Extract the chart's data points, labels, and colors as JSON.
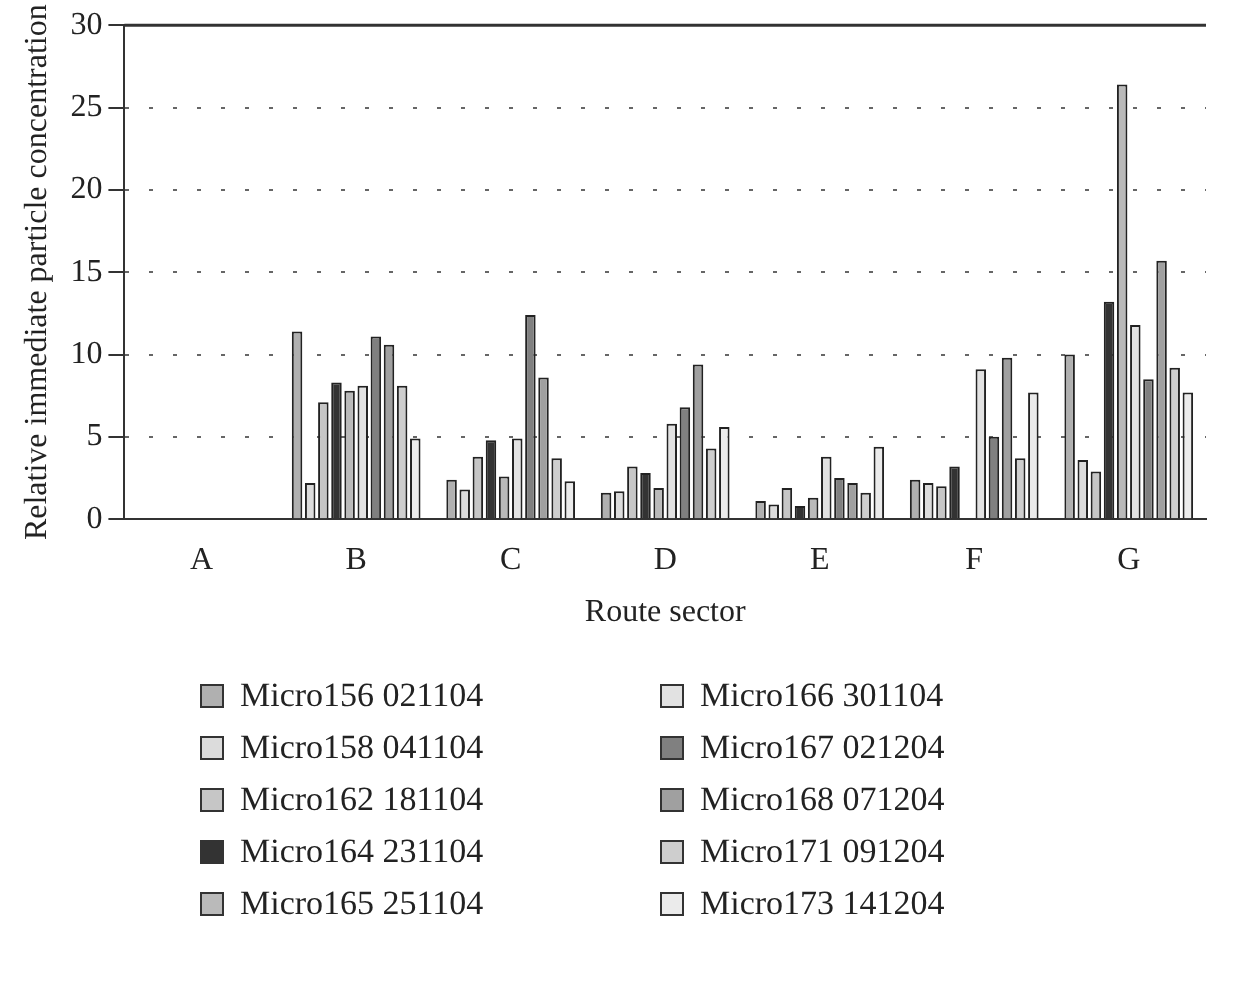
{
  "chart_data": {
    "type": "bar",
    "xlabel": "Route sector",
    "ylabel": "Relative immediate particle concentration",
    "categories": [
      "A",
      "B",
      "C",
      "D",
      "E",
      "F",
      "G"
    ],
    "series": [
      {
        "name": "Micro156 021104",
        "color": "#b0b0b0",
        "values": [
          0,
          11.4,
          2.4,
          1.6,
          1.1,
          2.4,
          10.0
        ]
      },
      {
        "name": "Micro158 041104",
        "color": "#dcdcdc",
        "values": [
          0,
          2.2,
          1.8,
          1.7,
          0.9,
          2.2,
          3.6
        ]
      },
      {
        "name": "Micro162 181104",
        "color": "#c6c6c6",
        "values": [
          0,
          7.1,
          3.8,
          3.2,
          1.9,
          2.0,
          2.9
        ]
      },
      {
        "name": "Micro164 231104",
        "color": "#333333",
        "values": [
          0,
          8.3,
          4.8,
          2.8,
          0.8,
          3.2,
          13.2
        ]
      },
      {
        "name": "Micro165 251104",
        "color": "#bababa",
        "values": [
          0,
          7.8,
          2.6,
          1.9,
          1.3,
          null,
          26.4
        ]
      },
      {
        "name": "Micro166 301104",
        "color": "#e2e2e2",
        "values": [
          0,
          8.1,
          4.9,
          5.8,
          3.8,
          9.1,
          11.8
        ]
      },
      {
        "name": "Micro167 021204",
        "color": "#808080",
        "values": [
          0,
          11.1,
          12.4,
          6.8,
          2.5,
          5.0,
          8.5
        ]
      },
      {
        "name": "Micro168 071204",
        "color": "#a0a0a0",
        "values": [
          0,
          10.6,
          8.6,
          9.4,
          2.2,
          9.8,
          15.7
        ]
      },
      {
        "name": "Micro171 091204",
        "color": "#cecece",
        "values": [
          0,
          8.1,
          3.7,
          4.3,
          1.6,
          3.7,
          9.2
        ]
      },
      {
        "name": "Micro173 141204",
        "color": "#ebebeb",
        "values": [
          0,
          4.9,
          2.3,
          5.6,
          4.4,
          7.7,
          7.7
        ]
      }
    ],
    "ylim": [
      0,
      30
    ],
    "yticks": [
      0,
      5,
      10,
      15,
      20,
      25,
      30
    ],
    "grid": "y",
    "legend": "bottom"
  }
}
